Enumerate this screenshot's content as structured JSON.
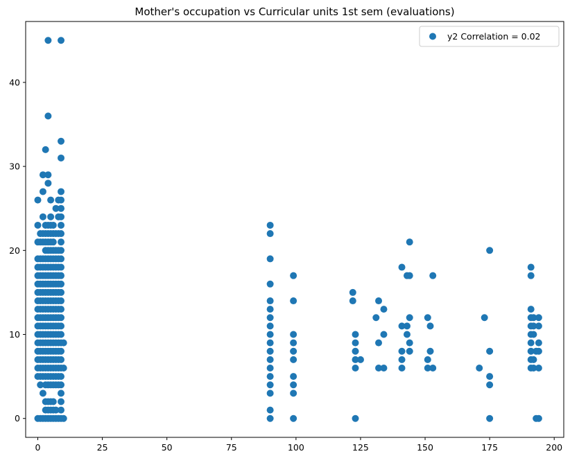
{
  "chart_data": {
    "type": "scatter",
    "title": "Mother's occupation vs Curricular units 1st sem (evaluations)",
    "xlabel": "",
    "ylabel": "",
    "xlim": [
      -4.7,
      203.7
    ],
    "ylim": [
      -2.25,
      47.25
    ],
    "x_ticks": [
      0,
      25,
      50,
      75,
      100,
      125,
      150,
      175,
      200
    ],
    "y_ticks": [
      0,
      10,
      20,
      30,
      40
    ],
    "grid": false,
    "legend_position": "top-right",
    "marker_color": "#1f77b4",
    "series": [
      {
        "name": "y2 Correlation = 0.02",
        "points": [
          [
            0,
            0
          ],
          [
            0,
            5
          ],
          [
            0,
            6
          ],
          [
            0,
            7
          ],
          [
            0,
            8
          ],
          [
            0,
            9
          ],
          [
            0,
            10
          ],
          [
            0,
            11
          ],
          [
            0,
            12
          ],
          [
            0,
            13
          ],
          [
            0,
            14
          ],
          [
            0,
            15
          ],
          [
            0,
            16
          ],
          [
            0,
            17
          ],
          [
            0,
            18
          ],
          [
            0,
            19
          ],
          [
            0,
            21
          ],
          [
            0,
            23
          ],
          [
            0,
            26
          ],
          [
            1,
            0
          ],
          [
            1,
            4
          ],
          [
            1,
            5
          ],
          [
            1,
            6
          ],
          [
            1,
            7
          ],
          [
            1,
            8
          ],
          [
            1,
            9
          ],
          [
            1,
            10
          ],
          [
            1,
            11
          ],
          [
            1,
            12
          ],
          [
            1,
            13
          ],
          [
            1,
            14
          ],
          [
            1,
            15
          ],
          [
            1,
            16
          ],
          [
            1,
            17
          ],
          [
            1,
            18
          ],
          [
            1,
            19
          ],
          [
            1,
            21
          ],
          [
            1,
            22
          ],
          [
            2,
            0
          ],
          [
            2,
            3
          ],
          [
            2,
            5
          ],
          [
            2,
            6
          ],
          [
            2,
            7
          ],
          [
            2,
            8
          ],
          [
            2,
            9
          ],
          [
            2,
            10
          ],
          [
            2,
            11
          ],
          [
            2,
            12
          ],
          [
            2,
            13
          ],
          [
            2,
            14
          ],
          [
            2,
            15
          ],
          [
            2,
            16
          ],
          [
            2,
            17
          ],
          [
            2,
            18
          ],
          [
            2,
            19
          ],
          [
            2,
            21
          ],
          [
            2,
            22
          ],
          [
            2,
            24
          ],
          [
            2,
            27
          ],
          [
            2,
            29
          ],
          [
            3,
            0
          ],
          [
            3,
            1
          ],
          [
            3,
            2
          ],
          [
            3,
            4
          ],
          [
            3,
            5
          ],
          [
            3,
            6
          ],
          [
            3,
            7
          ],
          [
            3,
            8
          ],
          [
            3,
            9
          ],
          [
            3,
            10
          ],
          [
            3,
            11
          ],
          [
            3,
            12
          ],
          [
            3,
            13
          ],
          [
            3,
            14
          ],
          [
            3,
            15
          ],
          [
            3,
            16
          ],
          [
            3,
            17
          ],
          [
            3,
            18
          ],
          [
            3,
            19
          ],
          [
            3,
            20
          ],
          [
            3,
            21
          ],
          [
            3,
            22
          ],
          [
            3,
            23
          ],
          [
            3,
            32
          ],
          [
            4,
            0
          ],
          [
            4,
            1
          ],
          [
            4,
            2
          ],
          [
            4,
            4
          ],
          [
            4,
            5
          ],
          [
            4,
            6
          ],
          [
            4,
            7
          ],
          [
            4,
            8
          ],
          [
            4,
            9
          ],
          [
            4,
            10
          ],
          [
            4,
            11
          ],
          [
            4,
            12
          ],
          [
            4,
            13
          ],
          [
            4,
            14
          ],
          [
            4,
            15
          ],
          [
            4,
            16
          ],
          [
            4,
            17
          ],
          [
            4,
            18
          ],
          [
            4,
            19
          ],
          [
            4,
            20
          ],
          [
            4,
            21
          ],
          [
            4,
            22
          ],
          [
            4,
            23
          ],
          [
            4,
            28
          ],
          [
            4,
            29
          ],
          [
            4,
            36
          ],
          [
            4,
            45
          ],
          [
            5,
            0
          ],
          [
            5,
            1
          ],
          [
            5,
            2
          ],
          [
            5,
            4
          ],
          [
            5,
            5
          ],
          [
            5,
            6
          ],
          [
            5,
            7
          ],
          [
            5,
            8
          ],
          [
            5,
            9
          ],
          [
            5,
            10
          ],
          [
            5,
            11
          ],
          [
            5,
            12
          ],
          [
            5,
            13
          ],
          [
            5,
            14
          ],
          [
            5,
            15
          ],
          [
            5,
            16
          ],
          [
            5,
            17
          ],
          [
            5,
            18
          ],
          [
            5,
            19
          ],
          [
            5,
            20
          ],
          [
            5,
            21
          ],
          [
            5,
            22
          ],
          [
            5,
            23
          ],
          [
            5,
            24
          ],
          [
            5,
            26
          ],
          [
            6,
            0
          ],
          [
            6,
            1
          ],
          [
            6,
            2
          ],
          [
            6,
            4
          ],
          [
            6,
            5
          ],
          [
            6,
            6
          ],
          [
            6,
            7
          ],
          [
            6,
            8
          ],
          [
            6,
            9
          ],
          [
            6,
            10
          ],
          [
            6,
            11
          ],
          [
            6,
            12
          ],
          [
            6,
            13
          ],
          [
            6,
            14
          ],
          [
            6,
            15
          ],
          [
            6,
            16
          ],
          [
            6,
            17
          ],
          [
            6,
            18
          ],
          [
            6,
            19
          ],
          [
            6,
            20
          ],
          [
            6,
            21
          ],
          [
            6,
            22
          ],
          [
            6,
            23
          ],
          [
            7,
            0
          ],
          [
            7,
            1
          ],
          [
            7,
            4
          ],
          [
            7,
            5
          ],
          [
            7,
            6
          ],
          [
            7,
            7
          ],
          [
            7,
            8
          ],
          [
            7,
            9
          ],
          [
            7,
            10
          ],
          [
            7,
            11
          ],
          [
            7,
            12
          ],
          [
            7,
            13
          ],
          [
            7,
            14
          ],
          [
            7,
            15
          ],
          [
            7,
            16
          ],
          [
            7,
            17
          ],
          [
            7,
            18
          ],
          [
            7,
            19
          ],
          [
            7,
            20
          ],
          [
            7,
            22
          ],
          [
            7,
            25
          ],
          [
            8,
            0
          ],
          [
            8,
            4
          ],
          [
            8,
            5
          ],
          [
            8,
            6
          ],
          [
            8,
            7
          ],
          [
            8,
            8
          ],
          [
            8,
            9
          ],
          [
            8,
            10
          ],
          [
            8,
            11
          ],
          [
            8,
            12
          ],
          [
            8,
            13
          ],
          [
            8,
            14
          ],
          [
            8,
            15
          ],
          [
            8,
            16
          ],
          [
            8,
            17
          ],
          [
            8,
            18
          ],
          [
            8,
            19
          ],
          [
            8,
            20
          ],
          [
            8,
            22
          ],
          [
            8,
            24
          ],
          [
            8,
            26
          ],
          [
            9,
            0
          ],
          [
            9,
            1
          ],
          [
            9,
            2
          ],
          [
            9,
            3
          ],
          [
            9,
            4
          ],
          [
            9,
            5
          ],
          [
            9,
            6
          ],
          [
            9,
            7
          ],
          [
            9,
            8
          ],
          [
            9,
            9
          ],
          [
            9,
            10
          ],
          [
            9,
            11
          ],
          [
            9,
            12
          ],
          [
            9,
            13
          ],
          [
            9,
            14
          ],
          [
            9,
            15
          ],
          [
            9,
            16
          ],
          [
            9,
            17
          ],
          [
            9,
            18
          ],
          [
            9,
            19
          ],
          [
            9,
            20
          ],
          [
            9,
            21
          ],
          [
            9,
            22
          ],
          [
            9,
            23
          ],
          [
            9,
            24
          ],
          [
            9,
            25
          ],
          [
            9,
            26
          ],
          [
            9,
            27
          ],
          [
            9,
            31
          ],
          [
            9,
            33
          ],
          [
            9,
            45
          ],
          [
            10,
            0
          ],
          [
            10,
            6
          ],
          [
            10,
            9
          ],
          [
            90,
            0
          ],
          [
            90,
            1
          ],
          [
            90,
            3
          ],
          [
            90,
            4
          ],
          [
            90,
            5
          ],
          [
            90,
            6
          ],
          [
            90,
            7
          ],
          [
            90,
            8
          ],
          [
            90,
            9
          ],
          [
            90,
            10
          ],
          [
            90,
            11
          ],
          [
            90,
            12
          ],
          [
            90,
            13
          ],
          [
            90,
            14
          ],
          [
            90,
            16
          ],
          [
            90,
            19
          ],
          [
            90,
            22
          ],
          [
            90,
            23
          ],
          [
            99,
            0
          ],
          [
            99,
            3
          ],
          [
            99,
            4
          ],
          [
            99,
            5
          ],
          [
            99,
            7
          ],
          [
            99,
            8
          ],
          [
            99,
            9
          ],
          [
            99,
            10
          ],
          [
            99,
            14
          ],
          [
            99,
            17
          ],
          [
            122,
            14
          ],
          [
            122,
            15
          ],
          [
            123,
            0
          ],
          [
            123,
            6
          ],
          [
            123,
            7
          ],
          [
            123,
            8
          ],
          [
            123,
            9
          ],
          [
            123,
            10
          ],
          [
            125,
            7
          ],
          [
            131,
            12
          ],
          [
            132,
            6
          ],
          [
            132,
            9
          ],
          [
            132,
            14
          ],
          [
            134,
            6
          ],
          [
            134,
            10
          ],
          [
            134,
            13
          ],
          [
            141,
            6
          ],
          [
            141,
            7
          ],
          [
            141,
            8
          ],
          [
            141,
            11
          ],
          [
            141,
            18
          ],
          [
            143,
            10
          ],
          [
            143,
            11
          ],
          [
            143,
            17
          ],
          [
            144,
            8
          ],
          [
            144,
            9
          ],
          [
            144,
            12
          ],
          [
            144,
            17
          ],
          [
            144,
            21
          ],
          [
            151,
            6
          ],
          [
            151,
            7
          ],
          [
            151,
            12
          ],
          [
            152,
            8
          ],
          [
            152,
            11
          ],
          [
            153,
            6
          ],
          [
            153,
            17
          ],
          [
            171,
            6
          ],
          [
            173,
            12
          ],
          [
            175,
            0
          ],
          [
            175,
            4
          ],
          [
            175,
            5
          ],
          [
            175,
            8
          ],
          [
            175,
            20
          ],
          [
            191,
            6
          ],
          [
            191,
            7
          ],
          [
            191,
            8
          ],
          [
            191,
            9
          ],
          [
            191,
            10
          ],
          [
            191,
            11
          ],
          [
            191,
            12
          ],
          [
            191,
            13
          ],
          [
            191,
            17
          ],
          [
            191,
            18
          ],
          [
            192,
            6
          ],
          [
            192,
            7
          ],
          [
            192,
            10
          ],
          [
            192,
            11
          ],
          [
            192,
            12
          ],
          [
            193,
            0
          ],
          [
            193,
            8
          ],
          [
            194,
            0
          ],
          [
            194,
            6
          ],
          [
            194,
            8
          ],
          [
            194,
            9
          ],
          [
            194,
            11
          ],
          [
            194,
            12
          ]
        ]
      }
    ]
  }
}
